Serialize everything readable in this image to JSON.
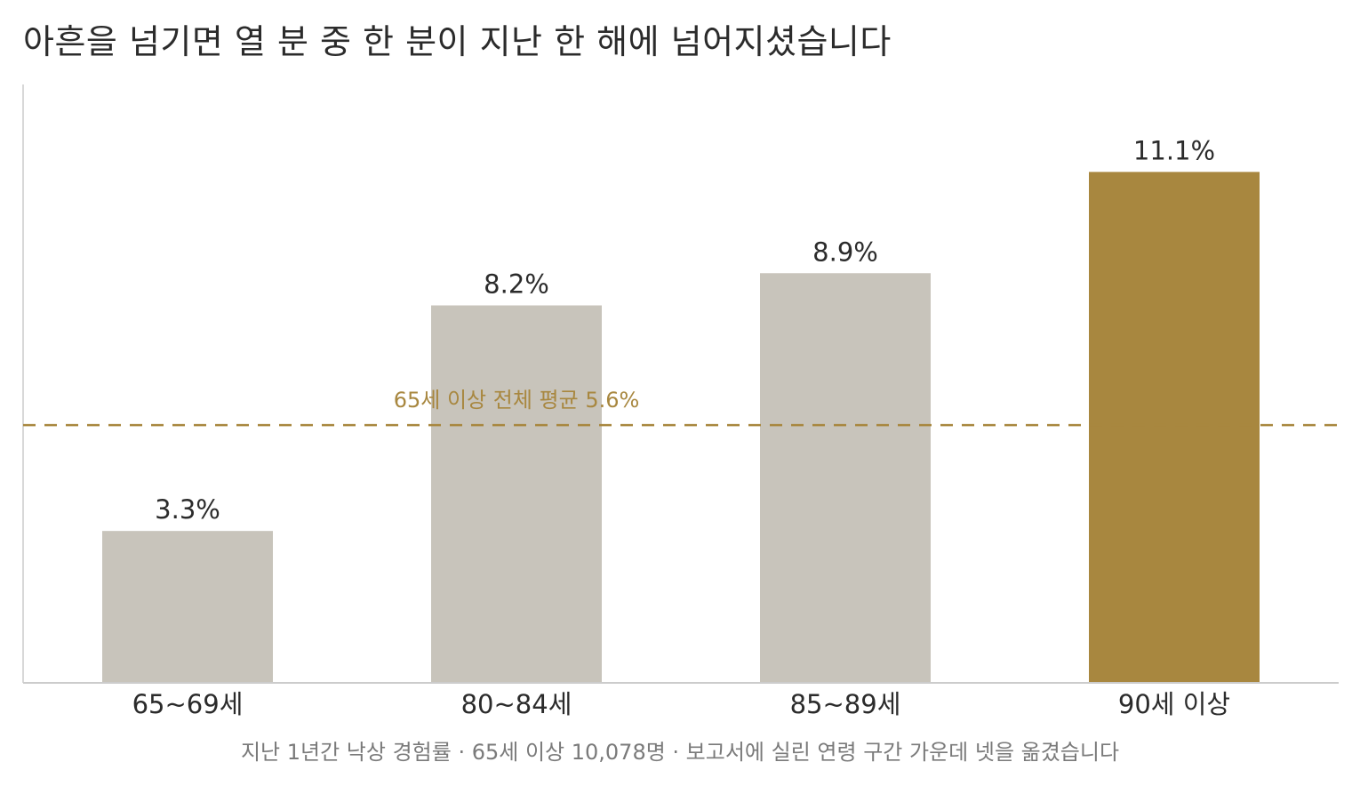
{
  "title": "아흔을 넘기면 열 분 중 한 분이 지난 한 해에 넘어지셨습니다",
  "caption": "지난 1년간 낙상 경험률 · 65세 이상 10,078명 · 보고서에 실린 연령 구간 가운데 넷을 옮겼습니다",
  "colors": {
    "bar_default": "#c8c4bb",
    "bar_highlight": "#a8873f",
    "reference": "#a8873f",
    "axis": "#cccccc"
  },
  "chart_data": {
    "type": "bar",
    "categories": [
      "65~69세",
      "80~84세",
      "85~89세",
      "90세 이상"
    ],
    "values": [
      3.3,
      8.2,
      8.9,
      11.1
    ],
    "value_labels": [
      "3.3%",
      "8.2%",
      "8.9%",
      "11.1%"
    ],
    "unit": "%",
    "highlight_index": 3,
    "ylim": [
      0,
      13.0
    ],
    "grid": false,
    "reference_line": {
      "value": 5.6,
      "label": "65세 이상 전체 평균 5.6%"
    }
  }
}
